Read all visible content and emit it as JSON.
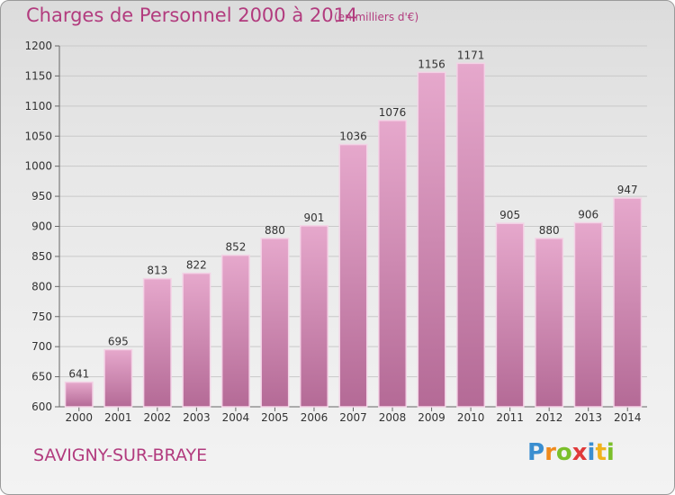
{
  "title": "Charges de Personnel 2000 à 2014",
  "unit_note": "(en milliers d'€)",
  "place": "SAVIGNY-SUR-BRAYE",
  "logo": {
    "letters": [
      "P",
      "r",
      "o",
      "x",
      "i",
      "t",
      "i"
    ],
    "colors": [
      "#3b8ed0",
      "#f08a1c",
      "#7bbf2a",
      "#e03a3a",
      "#3b8ed0",
      "#f0b21c",
      "#7bbf2a"
    ]
  },
  "colors": {
    "accent": "#b23b7e",
    "bar_top": "#e6a8cc",
    "bar_bottom": "#b46a96",
    "bar_edge": "#f3d3e6"
  },
  "chart_data": {
    "type": "bar",
    "categories": [
      "2000",
      "2001",
      "2002",
      "2003",
      "2004",
      "2005",
      "2006",
      "2007",
      "2008",
      "2009",
      "2010",
      "2011",
      "2012",
      "2013",
      "2014"
    ],
    "values": [
      641,
      695,
      813,
      822,
      852,
      880,
      901,
      1036,
      1076,
      1156,
      1171,
      905,
      880,
      906,
      947
    ],
    "ylim": [
      600,
      1200
    ],
    "yticks": [
      600,
      650,
      700,
      750,
      800,
      850,
      900,
      950,
      1000,
      1050,
      1100,
      1150,
      1200
    ],
    "title": "Charges de Personnel 2000 à 2014",
    "xlabel": "",
    "ylabel": "",
    "grid": true,
    "data_labels": true
  }
}
